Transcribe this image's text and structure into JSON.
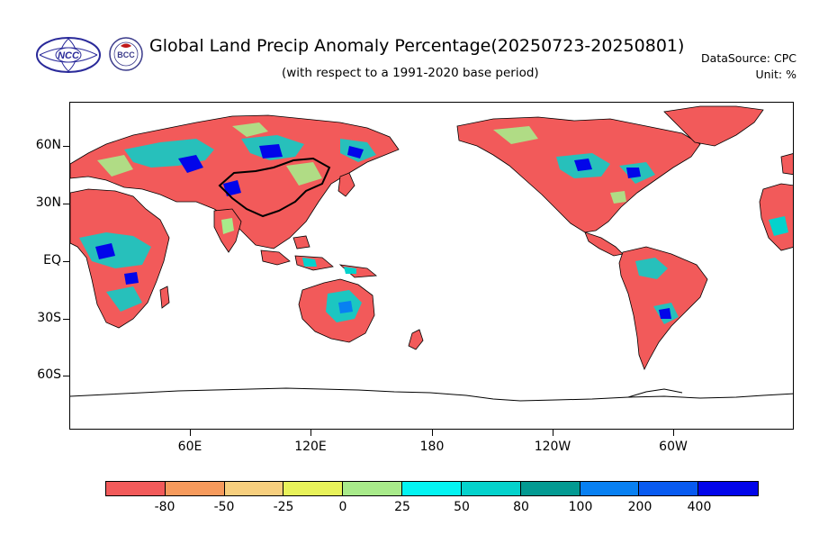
{
  "title": "Global Land Precip Anomaly Percentage(20250723-20250801)",
  "subtitle": "(with respect to a 1991-2020 base period)",
  "data_source": "DataSource:  CPC",
  "unit": "Unit:  %",
  "logos": {
    "left": {
      "text": "NCC",
      "color": "#2a2a9a"
    },
    "right": {
      "text": "BCC",
      "color": "#c01818"
    }
  },
  "lat_labels": [
    "60N",
    "30N",
    "EQ",
    "30S",
    "60S"
  ],
  "lon_labels": [
    "60E",
    "120E",
    "180",
    "120W",
    "60W"
  ],
  "colorbar": {
    "colors": [
      "#f25a5a",
      "#f69a5c",
      "#f7cf7e",
      "#e8f25a",
      "#a8ea8a",
      "#04f4f2",
      "#04d2cc",
      "#039a92",
      "#0880f2",
      "#085af0",
      "#0205ea"
    ],
    "labels": [
      "-80",
      "-50",
      "-25",
      "0",
      "25",
      "50",
      "80",
      "100",
      "200",
      "400"
    ]
  }
}
